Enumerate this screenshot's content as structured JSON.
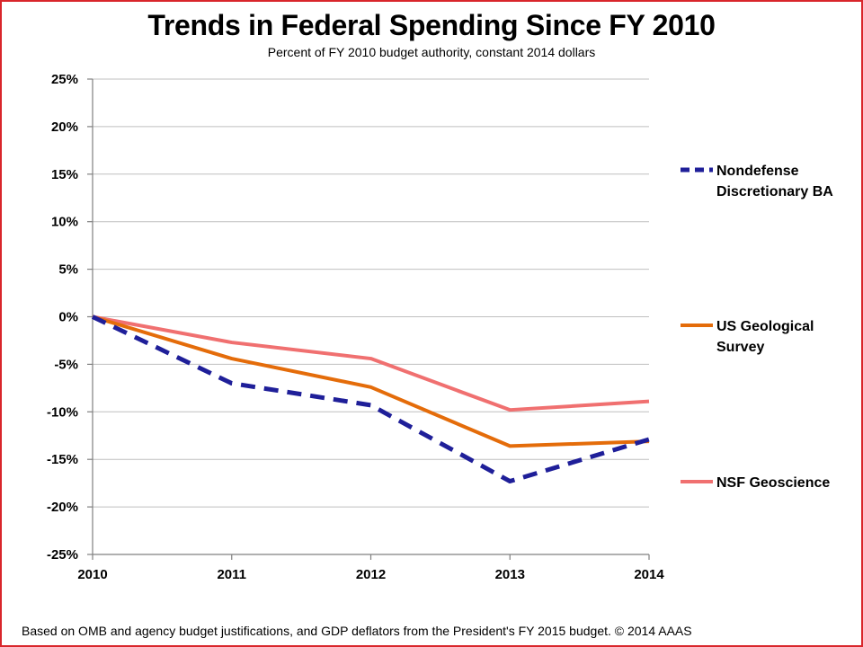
{
  "chart_data": {
    "type": "line",
    "title": "Trends in Federal Spending Since FY 2010",
    "subtitle": "Percent of FY 2010 budget authority, constant 2014 dollars",
    "x": [
      2010,
      2011,
      2012,
      2013,
      2014
    ],
    "x_tick_labels": [
      "2010",
      "2011",
      "2012",
      "2013",
      "2014"
    ],
    "ylim": [
      -25,
      25
    ],
    "y_ticks": [
      25,
      20,
      15,
      10,
      5,
      0,
      -5,
      -10,
      -15,
      -20,
      -25
    ],
    "y_tick_labels": [
      "25%",
      "20%",
      "15%",
      "10%",
      "5%",
      "0%",
      "-5%",
      "-10%",
      "-15%",
      "-20%",
      "-25%"
    ],
    "grid": true,
    "legend_position": "right",
    "series": [
      {
        "name": "Nondefense Discretionary BA",
        "legend_lines": [
          "Nondefense",
          "Discretionary BA"
        ],
        "values": [
          0,
          -7.0,
          -9.3,
          -17.3,
          -12.9
        ],
        "color": "#1f1f99",
        "style": "dashed"
      },
      {
        "name": "US Geological Survey",
        "legend_lines": [
          "US Geological",
          "Survey"
        ],
        "values": [
          0,
          -4.4,
          -7.4,
          -13.6,
          -13.1
        ],
        "color": "#e46c0a",
        "style": "solid"
      },
      {
        "name": "NSF Geoscience",
        "legend_lines": [
          "NSF Geoscience"
        ],
        "values": [
          0,
          -2.7,
          -4.4,
          -9.8,
          -8.9
        ],
        "color": "#f07070",
        "style": "solid"
      }
    ]
  },
  "footer": "Based on OMB and agency budget justifications, and GDP deflators from the President's FY 2015 budget. © 2014 AAAS"
}
